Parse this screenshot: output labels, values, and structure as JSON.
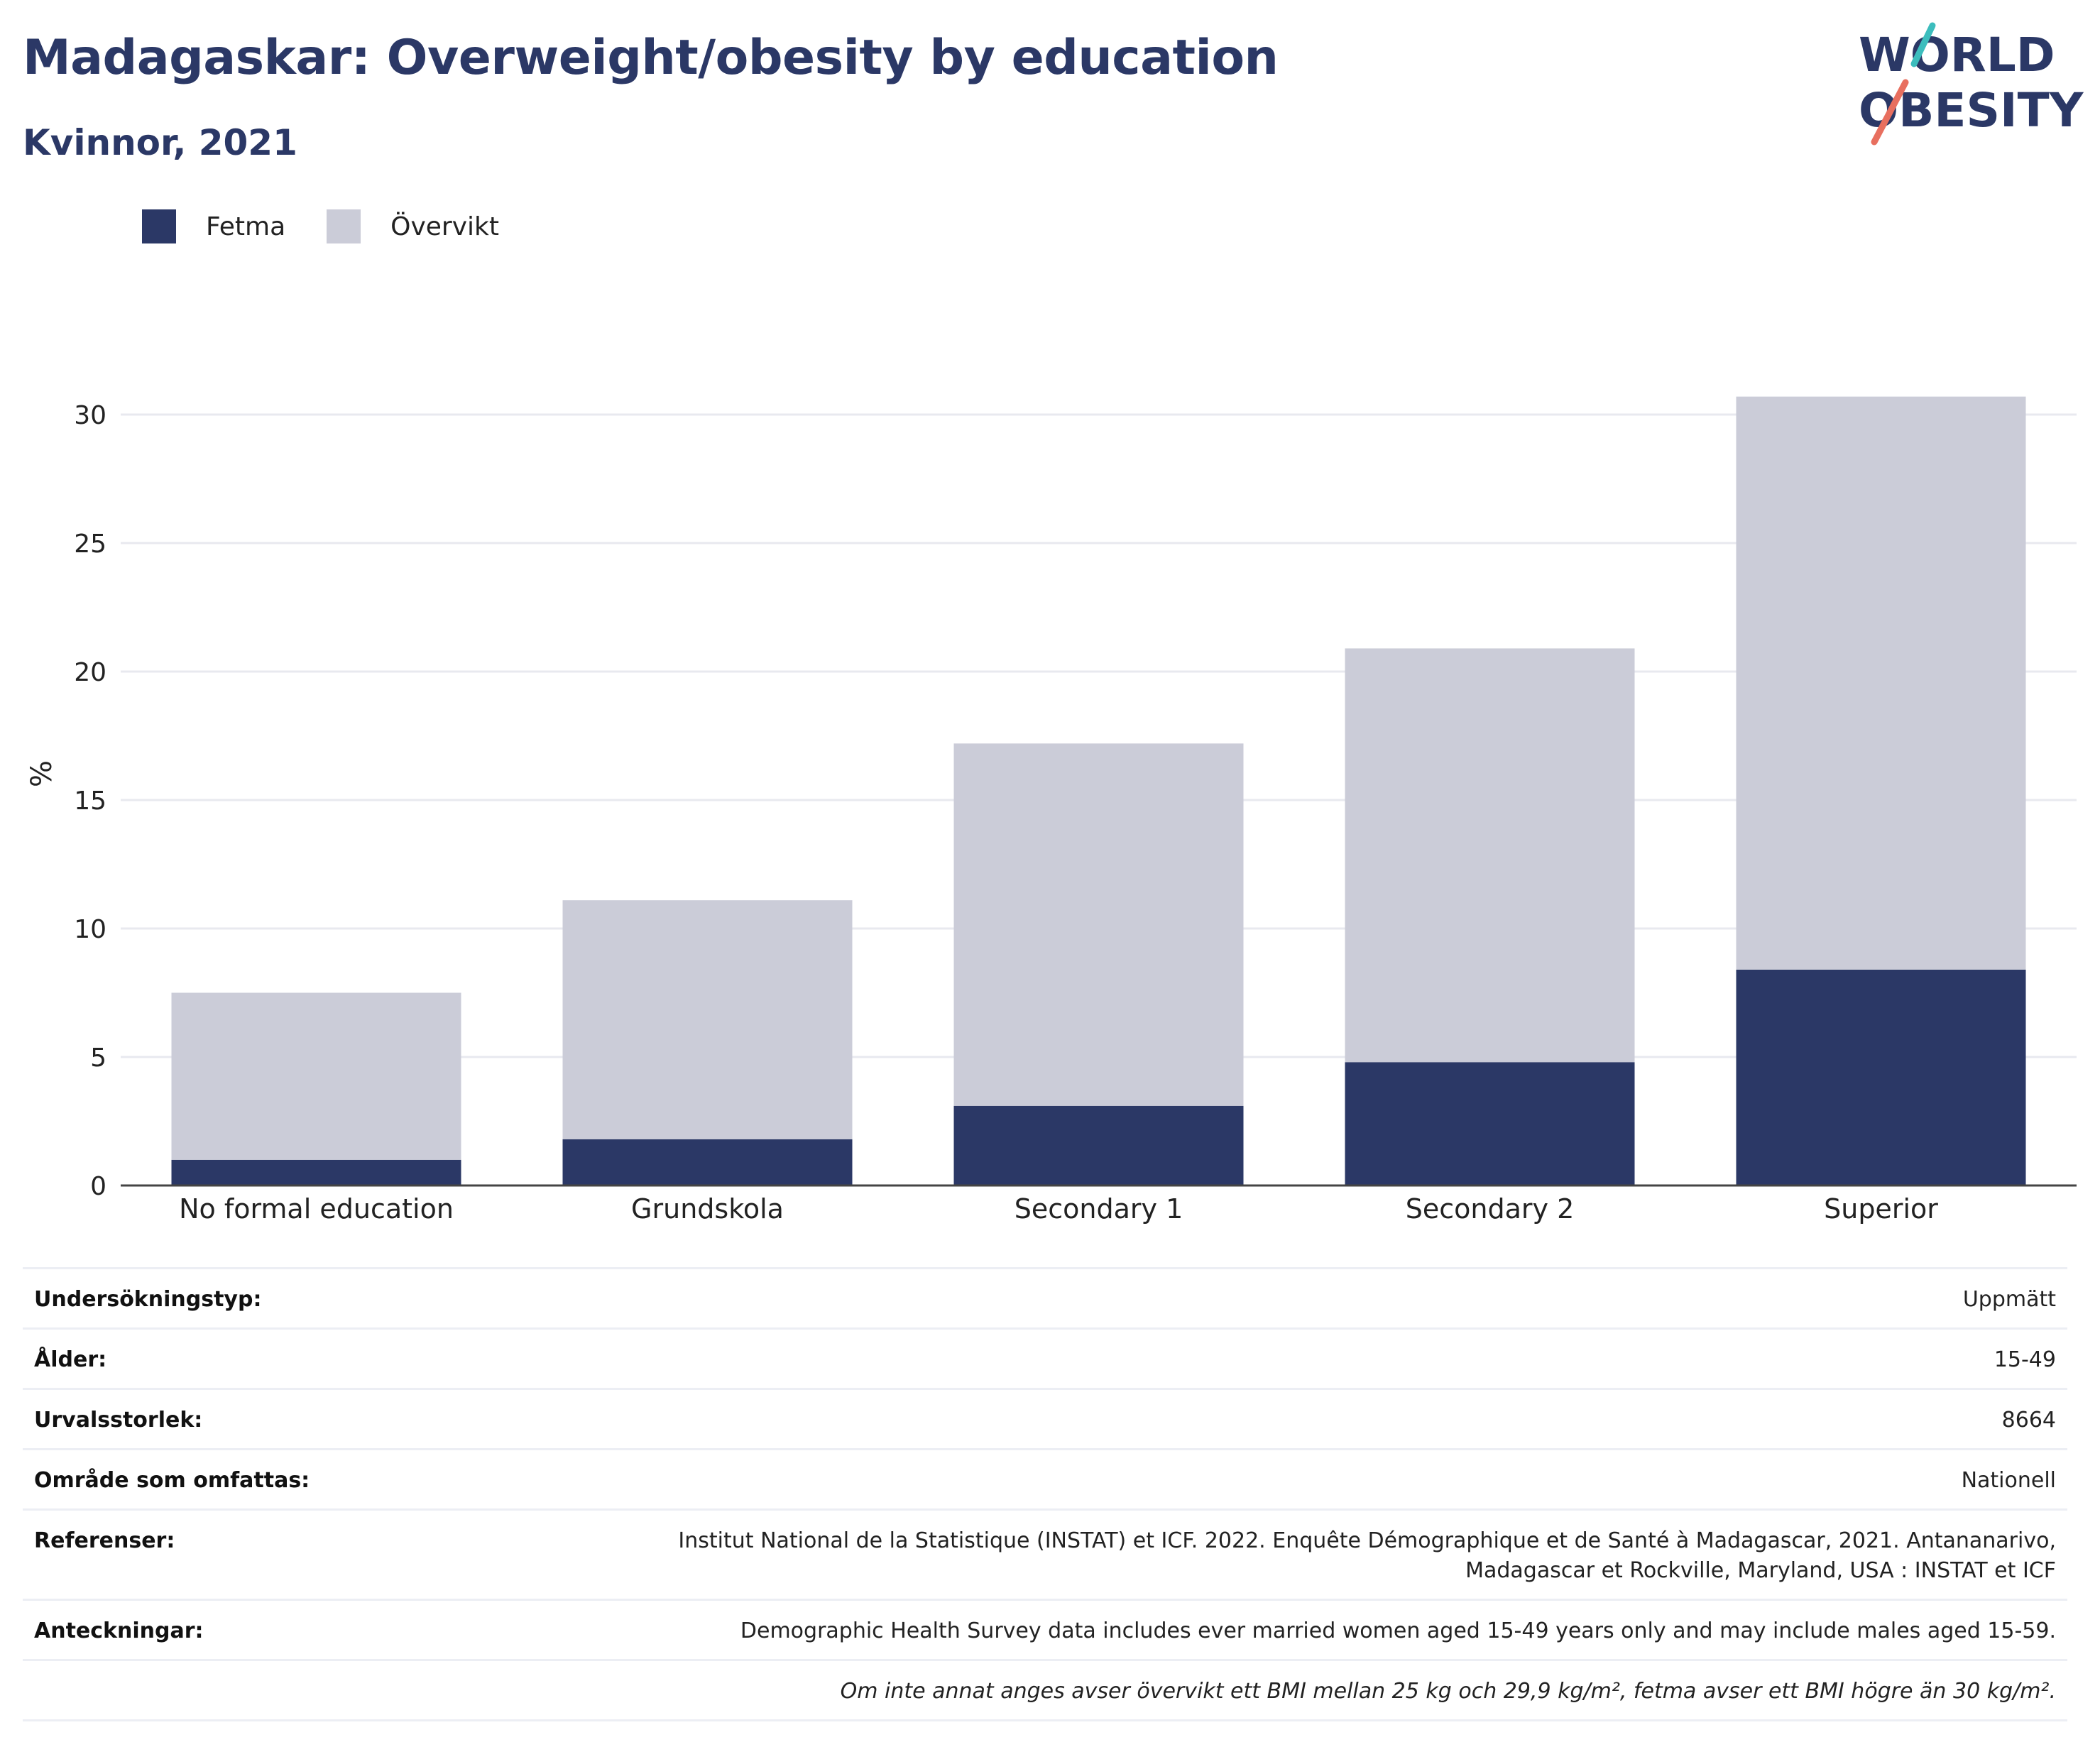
{
  "header": {
    "title": "Madagaskar: Overweight/obesity by education",
    "subtitle": "Kvinnor, 2021"
  },
  "logo": {
    "line1": "WORLD",
    "line2": "OBESITY"
  },
  "colors": {
    "fetma": "#2b3866",
    "overvikt": "#cbccd8",
    "title": "#2b3866",
    "logo_teal": "#3cbdbd",
    "logo_coral": "#e86f5f"
  },
  "legend": [
    {
      "label": "Fetma",
      "color": "#2b3866"
    },
    {
      "label": "Övervikt",
      "color": "#cbccd8"
    }
  ],
  "chart_data": {
    "type": "bar",
    "stacked": true,
    "title": "Madagaskar: Overweight/obesity by education",
    "subtitle": "Kvinnor, 2021",
    "ylabel": "%",
    "ylim": [
      0,
      32
    ],
    "yticks": [
      0,
      5,
      10,
      15,
      20,
      25,
      30
    ],
    "grid": true,
    "legend_position": "top-left",
    "categories": [
      "No formal education",
      "Grundskola",
      "Secondary 1",
      "Secondary 2",
      "Superior"
    ],
    "series": [
      {
        "name": "Fetma",
        "values": [
          1.0,
          1.8,
          3.1,
          4.8,
          8.4
        ]
      },
      {
        "name": "Övervikt",
        "values": [
          6.5,
          9.3,
          14.1,
          16.1,
          22.3
        ]
      }
    ]
  },
  "info": {
    "rows": [
      {
        "key": "Undersökningstyp:",
        "value": "Uppmätt"
      },
      {
        "key": "Ålder:",
        "value": "15-49"
      },
      {
        "key": "Urvalsstorlek:",
        "value": "8664"
      },
      {
        "key": "Område som omfattas:",
        "value": "Nationell"
      },
      {
        "key": "Referenser:",
        "value_line1": "Institut National de la Statistique (INSTAT) et ICF. 2022. Enquête Démographique et de Santé à Madagascar, 2021. Antananarivo,",
        "value_line2": "Madagascar et Rockville, Maryland, USA : INSTAT et ICF"
      },
      {
        "key": "Anteckningar:",
        "value": "Demographic Health Survey data includes ever married women aged 15-49 years only and may include males aged 15-59."
      }
    ],
    "note": "Om inte annat anges avser övervikt ett BMI mellan 25 kg och 29,9 kg/m², fetma avser ett BMI högre än 30 kg/m²."
  }
}
